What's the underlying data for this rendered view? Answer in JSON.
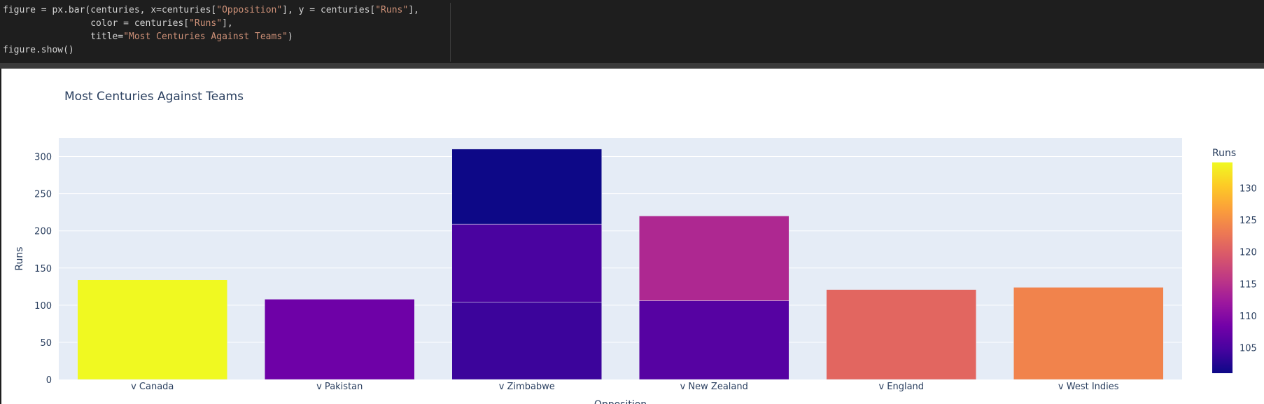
{
  "code": {
    "lines": [
      [
        {
          "t": "figure = px.bar(centuries, x=centuries["
        },
        {
          "t": "\"Opposition\"",
          "s": 1
        },
        {
          "t": "], y = centuries["
        },
        {
          "t": "\"Runs\"",
          "s": 1
        },
        {
          "t": "],"
        }
      ],
      [
        {
          "t": "                color = centuries["
        },
        {
          "t": "\"Runs\"",
          "s": 1
        },
        {
          "t": "],"
        }
      ],
      [
        {
          "t": "                title="
        },
        {
          "t": "\"Most Centuries Against Teams\"",
          "s": 1
        },
        {
          "t": ")"
        }
      ],
      [
        {
          "t": "figure.show()"
        }
      ]
    ]
  },
  "chart_data": {
    "type": "bar",
    "title": "Most Centuries Against Teams",
    "xlabel": "Opposition",
    "ylabel": "Runs",
    "ylim": [
      0,
      325
    ],
    "yticks": [
      0,
      50,
      100,
      150,
      200,
      250,
      300
    ],
    "grid": true,
    "barmode": "stack",
    "categories": [
      "v Canada",
      "v Pakistan",
      "v Zimbabwe",
      "v New Zealand",
      "v England",
      "v West Indies"
    ],
    "segments": [
      {
        "category": "v Canada",
        "value": 134
      },
      {
        "category": "v Pakistan",
        "value": 108
      },
      {
        "category": "v Zimbabwe",
        "value": 104
      },
      {
        "category": "v Zimbabwe",
        "value": 105
      },
      {
        "category": "v Zimbabwe",
        "value": 101
      },
      {
        "category": "v New Zealand",
        "value": 106
      },
      {
        "category": "v New Zealand",
        "value": 114
      },
      {
        "category": "v England",
        "value": 121
      },
      {
        "category": "v West Indies",
        "value": 124
      }
    ],
    "colorbar": {
      "title": "Runs",
      "range": [
        101,
        134
      ],
      "ticks": [
        105,
        110,
        115,
        120,
        125,
        130
      ],
      "colorscale": [
        "#0d0887",
        "#46039f",
        "#7201a8",
        "#9c179e",
        "#bd3786",
        "#d8576b",
        "#ed7953",
        "#fb9f3a",
        "#fdca26",
        "#f0f921"
      ]
    }
  }
}
